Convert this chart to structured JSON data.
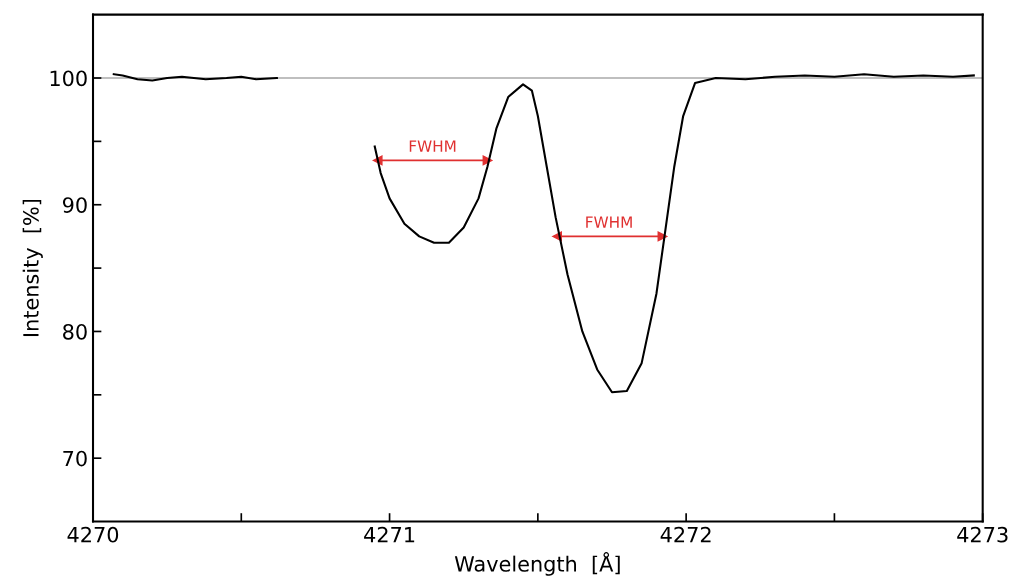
{
  "chart_data": {
    "type": "line",
    "xlabel": "Wavelength  [Å]",
    "ylabel": "Intensity  [%]",
    "xlim": [
      4270,
      4273
    ],
    "ylim": [
      65,
      105
    ],
    "xticks": [
      4270,
      {
        "value": 4270.5,
        "label": null
      },
      4271,
      {
        "value": 4271.5,
        "label": null
      },
      4272,
      {
        "value": 4272.5,
        "label": null
      },
      4273
    ],
    "yticks": [
      70,
      {
        "value": 75,
        "label": null
      },
      80,
      {
        "value": 85,
        "label": null
      },
      90,
      {
        "value": 95,
        "label": null
      },
      100
    ],
    "grid": false,
    "legend": false,
    "marker": "none",
    "line_style": "solid",
    "ref_lines": [
      {
        "axis": "y",
        "value": 100,
        "label": null,
        "color": "#aaaaaa"
      }
    ],
    "series": [
      {
        "color": "#000000",
        "x": [
          4270.07,
          4270.1,
          4270.15,
          4270.2,
          4270.25,
          4270.3,
          4270.38,
          4270.45,
          4270.5,
          4270.55,
          4270.62,
          4270.7,
          4270.95,
          4270.97,
          4271.0,
          4271.05,
          4271.1,
          4271.15,
          4271.2,
          4271.25,
          4271.3,
          4271.33,
          4271.36,
          4271.4,
          4271.45,
          4271.48,
          4271.5,
          4271.53,
          4271.56,
          4271.6,
          4271.65,
          4271.7,
          4271.75,
          4271.8,
          4271.85,
          4271.9,
          4271.93,
          4271.96,
          4271.99,
          4272.03,
          4272.1,
          4272.2,
          4272.3,
          4272.4,
          4272.5,
          4272.6,
          4272.7,
          4272.8,
          4272.9,
          4272.97
        ],
        "values": [
          100.3,
          100.2,
          99.9,
          99.8,
          100.0,
          100.1,
          99.9,
          100.0,
          100.1,
          99.9,
          100.0,
          null,
          94.6,
          92.5,
          90.5,
          88.5,
          87.5,
          87.0,
          87.0,
          88.2,
          90.5,
          93,
          96,
          98.5,
          99.5,
          99.0,
          97,
          93,
          89,
          84.5,
          80,
          77,
          75.2,
          75.3,
          77.5,
          83,
          88,
          93,
          97,
          99.6,
          100.0,
          99.9,
          100.1,
          100.2,
          100.1,
          100.3,
          100.1,
          100.2,
          100.1,
          100.2
        ]
      },
      {
        "color": "#e03030",
        "marker": "triangle",
        "x": [
          4270.96,
          4271.33
        ],
        "values": [
          93.5,
          93.5
        ]
      },
      {
        "color": "#e03030",
        "marker": "triangle",
        "x": [
          4271.565,
          4271.92
        ],
        "values": [
          87.5,
          87.5
        ]
      }
    ],
    "annotations": [
      {
        "text": "FWHM",
        "x": 4271.145,
        "y": 93.5
      },
      {
        "text": "FWHM",
        "x": 4271.74,
        "y": 87.5
      }
    ]
  }
}
